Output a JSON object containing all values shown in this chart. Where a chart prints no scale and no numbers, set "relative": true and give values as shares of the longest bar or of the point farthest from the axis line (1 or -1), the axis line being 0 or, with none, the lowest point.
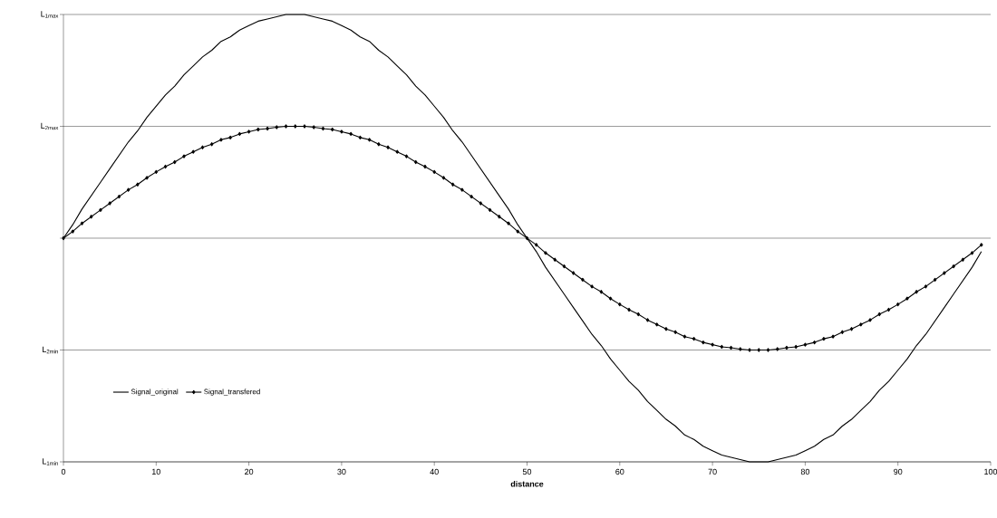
{
  "chart_data": {
    "type": "line",
    "xlabel": "distance",
    "relative": true,
    "xlim": [
      0,
      100
    ],
    "xticks": [
      0,
      10,
      20,
      30,
      40,
      50,
      60,
      70,
      80,
      90,
      100
    ],
    "ref_lines": [
      {
        "axis": "y",
        "value": 0,
        "label": "L$_{1min}$",
        "color": "#000000"
      },
      {
        "axis": "y",
        "value": 0.25,
        "label": "L$_{2min}$",
        "color": "#000000"
      },
      {
        "axis": "y",
        "value": 0.5,
        "color": "#000000"
      },
      {
        "axis": "y",
        "value": 0.75,
        "label": "L$_{2max}$",
        "color": "#000000"
      },
      {
        "axis": "y",
        "value": 1,
        "label": "L$_{1max}$",
        "color": "#000000"
      }
    ],
    "legend": "bottom left",
    "x": [
      0,
      1,
      2,
      3,
      4,
      5,
      6,
      7,
      8,
      9,
      10,
      11,
      12,
      13,
      14,
      15,
      16,
      17,
      18,
      19,
      20,
      21,
      22,
      23,
      24,
      25,
      26,
      27,
      28,
      29,
      30,
      31,
      32,
      33,
      34,
      35,
      36,
      37,
      38,
      39,
      40,
      41,
      42,
      43,
      44,
      45,
      46,
      47,
      48,
      49,
      50,
      51,
      52,
      53,
      54,
      55,
      56,
      57,
      58,
      59,
      60,
      61,
      62,
      63,
      64,
      65,
      66,
      67,
      68,
      69,
      70,
      71,
      72,
      73,
      74,
      75,
      76,
      77,
      78,
      79,
      80,
      81,
      82,
      83,
      84,
      85,
      86,
      87,
      88,
      89,
      90,
      91,
      92,
      93,
      94,
      95,
      96,
      97,
      98,
      99
    ],
    "series": [
      {
        "name": "Signal_original",
        "color": "#000000",
        "marker": "none",
        "values": [
          0.5,
          0.53,
          0.565,
          0.595,
          0.625,
          0.655,
          0.685,
          0.715,
          0.74,
          0.77,
          0.795,
          0.82,
          0.84,
          0.865,
          0.885,
          0.905,
          0.92,
          0.94,
          0.95,
          0.965,
          0.975,
          0.985,
          0.99,
          0.995,
          1,
          1,
          1,
          0.995,
          0.99,
          0.985,
          0.975,
          0.965,
          0.95,
          0.94,
          0.92,
          0.905,
          0.885,
          0.865,
          0.84,
          0.82,
          0.795,
          0.77,
          0.74,
          0.715,
          0.685,
          0.655,
          0.625,
          0.595,
          0.565,
          0.53,
          0.5,
          0.47,
          0.435,
          0.405,
          0.375,
          0.345,
          0.315,
          0.285,
          0.26,
          0.23,
          0.205,
          0.18,
          0.16,
          0.135,
          0.115,
          0.095,
          0.08,
          0.06,
          0.05,
          0.035,
          0.025,
          0.015,
          0.01,
          0.005,
          0,
          0,
          0,
          0.005,
          0.01,
          0.015,
          0.025,
          0.035,
          0.05,
          0.06,
          0.08,
          0.095,
          0.115,
          0.135,
          0.16,
          0.18,
          0.205,
          0.23,
          0.26,
          0.285,
          0.315,
          0.345,
          0.375,
          0.405,
          0.435,
          0.47
        ]
      },
      {
        "name": "Signal_transfered",
        "color": "#000000",
        "marker": "diamond",
        "values": [
          0.5,
          0.515,
          0.533,
          0.548,
          0.563,
          0.578,
          0.593,
          0.608,
          0.62,
          0.635,
          0.648,
          0.66,
          0.67,
          0.683,
          0.693,
          0.703,
          0.71,
          0.72,
          0.725,
          0.733,
          0.738,
          0.743,
          0.745,
          0.748,
          0.75,
          0.75,
          0.75,
          0.748,
          0.745,
          0.743,
          0.738,
          0.733,
          0.725,
          0.72,
          0.71,
          0.703,
          0.693,
          0.683,
          0.67,
          0.66,
          0.648,
          0.635,
          0.62,
          0.608,
          0.593,
          0.578,
          0.563,
          0.548,
          0.533,
          0.515,
          0.5,
          0.485,
          0.467,
          0.452,
          0.437,
          0.422,
          0.407,
          0.392,
          0.38,
          0.365,
          0.352,
          0.34,
          0.33,
          0.317,
          0.307,
          0.297,
          0.29,
          0.28,
          0.275,
          0.267,
          0.262,
          0.257,
          0.255,
          0.252,
          0.25,
          0.25,
          0.25,
          0.252,
          0.255,
          0.257,
          0.262,
          0.267,
          0.275,
          0.28,
          0.29,
          0.297,
          0.307,
          0.317,
          0.33,
          0.34,
          0.352,
          0.365,
          0.38,
          0.392,
          0.407,
          0.422,
          0.437,
          0.452,
          0.467,
          0.485
        ]
      }
    ]
  }
}
